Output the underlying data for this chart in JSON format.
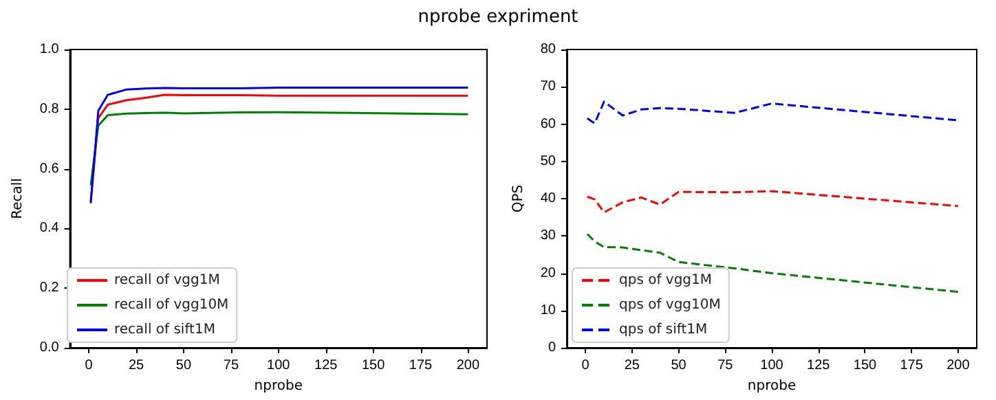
{
  "chart_data": [
    {
      "type": "line",
      "title": "nprobe expriment",
      "xlabel": "nprobe",
      "ylabel": "Recall",
      "x": [
        1,
        5,
        10,
        20,
        30,
        40,
        50,
        80,
        100,
        200
      ],
      "xlim": [
        -10,
        210
      ],
      "xticks": [
        0,
        25,
        50,
        75,
        100,
        125,
        150,
        175,
        200
      ],
      "ylim": [
        0,
        1
      ],
      "yticks": [
        {
          "value": 0,
          "label": "0.0"
        },
        0.2,
        0.4,
        0.6,
        0.8,
        {
          "value": 1,
          "label": "1.0"
        }
      ],
      "grid": false,
      "legend": "bottom left",
      "marker": "none",
      "line_style": "solid",
      "series": [
        {
          "name": "recall of vgg1M",
          "color": "#ff0000",
          "values": [
            0.49,
            0.77,
            0.815,
            0.83,
            0.838,
            0.848,
            0.847,
            0.847,
            0.845,
            0.845
          ]
        },
        {
          "name": "recall of vgg10M",
          "color": "#008000",
          "values": [
            0.545,
            0.745,
            0.78,
            0.785,
            0.787,
            0.788,
            0.786,
            0.789,
            0.79,
            0.783
          ]
        },
        {
          "name": "recall of sift1M",
          "color": "#0000ff",
          "values": [
            0.485,
            0.795,
            0.848,
            0.866,
            0.869,
            0.871,
            0.87,
            0.87,
            0.872,
            0.872
          ]
        }
      ]
    },
    {
      "type": "line",
      "xlabel": "nprobe",
      "ylabel": "QPS",
      "x": [
        1,
        5,
        10,
        20,
        30,
        40,
        50,
        80,
        100,
        200
      ],
      "xlim": [
        -10,
        210
      ],
      "xticks": [
        0,
        25,
        50,
        75,
        100,
        125,
        150,
        175,
        200
      ],
      "ylim": [
        0,
        80
      ],
      "yticks": [
        0,
        10,
        20,
        30,
        40,
        50,
        60,
        70,
        80
      ],
      "grid": false,
      "legend": "bottom left",
      "marker": "none",
      "line_style": "dashed",
      "series": [
        {
          "name": "qps of vgg1M",
          "color": "#ff0000",
          "values": [
            40.5,
            39.8,
            36.3,
            39.0,
            40.3,
            38.4,
            41.8,
            41.7,
            42.0,
            38.0
          ]
        },
        {
          "name": "qps of vgg10M",
          "color": "#008000",
          "values": [
            30.5,
            28.5,
            27.0,
            26.9,
            26.2,
            25.5,
            23.0,
            21.3,
            20.0,
            15.0
          ]
        },
        {
          "name": "qps of sift1M",
          "color": "#0000ff",
          "values": [
            61.5,
            60.2,
            66.0,
            62.3,
            63.9,
            64.3,
            64.1,
            63.0,
            65.5,
            61.0
          ]
        }
      ]
    }
  ]
}
